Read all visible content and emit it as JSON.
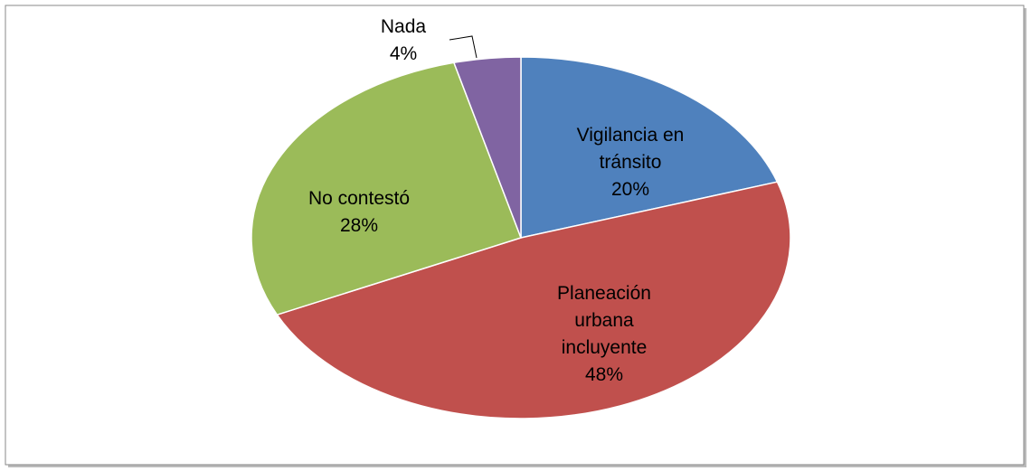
{
  "chart_data": {
    "type": "pie",
    "categories": [
      "Vigilancia en tránsito",
      "Planeación urbana incluyente",
      "No contestó",
      "Nada"
    ],
    "values": [
      20,
      48,
      28,
      4
    ],
    "value_labels": [
      "20%",
      "48%",
      "28%",
      "4%"
    ],
    "colors": [
      "#4f81bd",
      "#c0504d",
      "#9bbb59",
      "#8064a2"
    ]
  }
}
